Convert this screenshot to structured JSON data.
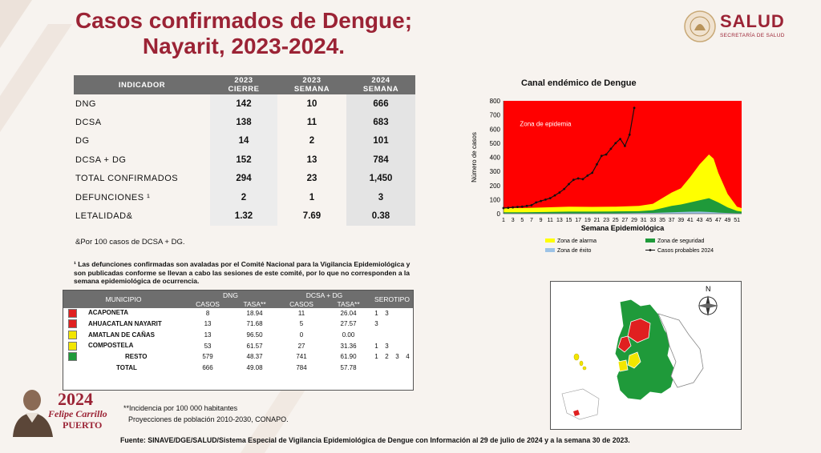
{
  "title": {
    "line1": "Casos confirmados de Dengue;",
    "line2": "Nayarit, 2023-2024."
  },
  "logo": {
    "name": "SALUD",
    "subtitle": "SECRETARÍA DE SALUD"
  },
  "indicator_table": {
    "headers": [
      "INDICADOR",
      "2023 CIERRE",
      "2023 SEMANA",
      "2024 SEMANA"
    ],
    "header_lines": [
      [
        "INDICADOR"
      ],
      [
        "2023",
        "CIERRE"
      ],
      [
        "2023",
        "SEMANA"
      ],
      [
        "2024",
        "SEMANA"
      ]
    ],
    "rows": [
      {
        "label": "DNG",
        "c1": "142",
        "c2": "10",
        "c3": "666"
      },
      {
        "label": "DCSA",
        "c1": "138",
        "c2": "11",
        "c3": "683"
      },
      {
        "label": "DG",
        "c1": "14",
        "c2": "2",
        "c3": "101"
      },
      {
        "label": "DCSA + DG",
        "c1": "152",
        "c2": "13",
        "c3": "784"
      },
      {
        "label": "TOTAL CONFIRMADOS",
        "c1": "294",
        "c2": "23",
        "c3": "1,450"
      },
      {
        "label": "DEFUNCIONES ¹",
        "c1": "2",
        "c2": "1",
        "c3": "3"
      },
      {
        "label": "LETALIDAD&",
        "c1": "1.32",
        "c2": "7.69",
        "c3": "0.38"
      }
    ],
    "note": "&Por 100 casos de DCSA + DG."
  },
  "defunciones_note": "¹ Las defunciones confirmadas son avaladas por el Comité Nacional para la Vigilancia Epidemiológica y son publicadas conforme se llevan a cabo las sesiones de este comité, por lo que no corresponden a la semana epidemiológica de ocurrencia.",
  "municipio_table": {
    "headers": {
      "municipio": "MUNICIPIO",
      "dng": "DNG",
      "dcsa": "DCSA + DG",
      "serotipo": "SEROTIPO",
      "casos": "CASOS",
      "tasa": "TASA**"
    },
    "rows": [
      {
        "name": "ACAPONETA",
        "color": "#e02020",
        "dng_casos": "8",
        "dng_tasa": "18.94",
        "dcsa_casos": "11",
        "dcsa_tasa": "26.04",
        "serotipo": [
          "1",
          "3"
        ]
      },
      {
        "name": "AHUACATLAN NAYARIT",
        "color": "#e02020",
        "dng_casos": "13",
        "dng_tasa": "71.68",
        "dcsa_casos": "5",
        "dcsa_tasa": "27.57",
        "serotipo": [
          "3"
        ]
      },
      {
        "name": "AMATLAN DE CAÑAS",
        "color": "#f2e600",
        "dng_casos": "13",
        "dng_tasa": "96.50",
        "dcsa_casos": "0",
        "dcsa_tasa": "0.00",
        "serotipo": []
      },
      {
        "name": "COMPOSTELA",
        "color": "#f2e600",
        "dng_casos": "53",
        "dng_tasa": "61.57",
        "dcsa_casos": "27",
        "dcsa_tasa": "31.36",
        "serotipo": [
          "1",
          "3"
        ]
      },
      {
        "name": "RESTO",
        "color": "#1f9a3a",
        "dng_casos": "579",
        "dng_tasa": "48.37",
        "dcsa_casos": "741",
        "dcsa_tasa": "61.90",
        "serotipo": [
          "1",
          "2",
          "3",
          "4"
        ]
      },
      {
        "name": "TOTAL",
        "color": "",
        "dng_casos": "666",
        "dng_tasa": "49.08",
        "dcsa_casos": "784",
        "dcsa_tasa": "57.78",
        "serotipo": []
      }
    ]
  },
  "notes": {
    "incidencia": "**Incidencia por 100 000 habitantes",
    "proyecciones": "Proyecciones de población 2010-2030,  CONAPO.",
    "fuente": "Fuente: SINAVE/DGE/SALUD/Sistema Especial de Vigilancia Epidemiológica de Dengue con Información al 29 de julio de 2024 y a la semana 30 de 2023."
  },
  "branding": {
    "year": "2024",
    "name_line1": "Felipe Carrillo",
    "name_line2": "PUERTO"
  },
  "map": {
    "compass": "N"
  },
  "colors": {
    "brand": "#9b2335",
    "epidemia": "#ff0000",
    "alarma": "#ffff00",
    "seguridad": "#1f9a3a",
    "exito": "#9dc3e6",
    "casos": "#111111"
  },
  "chart_data": {
    "type": "area",
    "title": "Canal endémico de Dengue",
    "xlabel": "Semana Epidemiológica",
    "ylabel": "Número de casos",
    "ylim": [
      0,
      800
    ],
    "yticks": [
      0,
      100,
      200,
      300,
      400,
      500,
      600,
      700,
      800
    ],
    "xlim": [
      1,
      52
    ],
    "xticks": [
      1,
      3,
      5,
      7,
      9,
      11,
      13,
      15,
      17,
      19,
      21,
      23,
      25,
      27,
      29,
      31,
      33,
      35,
      37,
      39,
      41,
      43,
      45,
      47,
      49,
      51
    ],
    "annotation": "Zona de epidemia",
    "legend_placement": "bottom",
    "series": [
      {
        "name": "Zona de éxito",
        "key": "exito",
        "x": [
          1,
          5,
          10,
          15,
          20,
          25,
          30,
          33,
          35,
          37,
          39,
          41,
          43,
          45,
          47,
          49,
          51,
          52
        ],
        "values": [
          3,
          3,
          3,
          3,
          3,
          3,
          5,
          6,
          8,
          10,
          12,
          14,
          15,
          12,
          8,
          5,
          3,
          3
        ]
      },
      {
        "name": "Zona de seguridad",
        "key": "seguridad",
        "x": [
          1,
          5,
          10,
          15,
          20,
          25,
          30,
          33,
          35,
          37,
          39,
          41,
          43,
          45,
          47,
          49,
          51,
          52
        ],
        "values": [
          10,
          10,
          12,
          15,
          15,
          16,
          18,
          25,
          40,
          55,
          65,
          80,
          95,
          110,
          80,
          45,
          20,
          15
        ]
      },
      {
        "name": "Zona de alarma",
        "key": "alarma",
        "x": [
          1,
          5,
          10,
          15,
          20,
          25,
          30,
          33,
          35,
          37,
          39,
          41,
          43,
          45,
          46,
          47,
          49,
          51,
          52
        ],
        "values": [
          40,
          40,
          45,
          50,
          48,
          50,
          55,
          70,
          110,
          150,
          180,
          260,
          350,
          420,
          390,
          290,
          140,
          50,
          40
        ]
      },
      {
        "name": "Casos probables 2024",
        "key": "casos",
        "x": [
          1,
          2,
          3,
          4,
          5,
          6,
          7,
          8,
          9,
          10,
          11,
          12,
          13,
          14,
          15,
          16,
          17,
          18,
          19,
          20,
          21,
          22,
          23,
          24,
          25,
          26,
          27,
          28,
          29
        ],
        "values": [
          40,
          42,
          45,
          48,
          50,
          55,
          60,
          80,
          90,
          100,
          110,
          130,
          150,
          175,
          210,
          240,
          250,
          245,
          270,
          290,
          350,
          410,
          420,
          460,
          500,
          530,
          480,
          560,
          750
        ]
      }
    ]
  }
}
